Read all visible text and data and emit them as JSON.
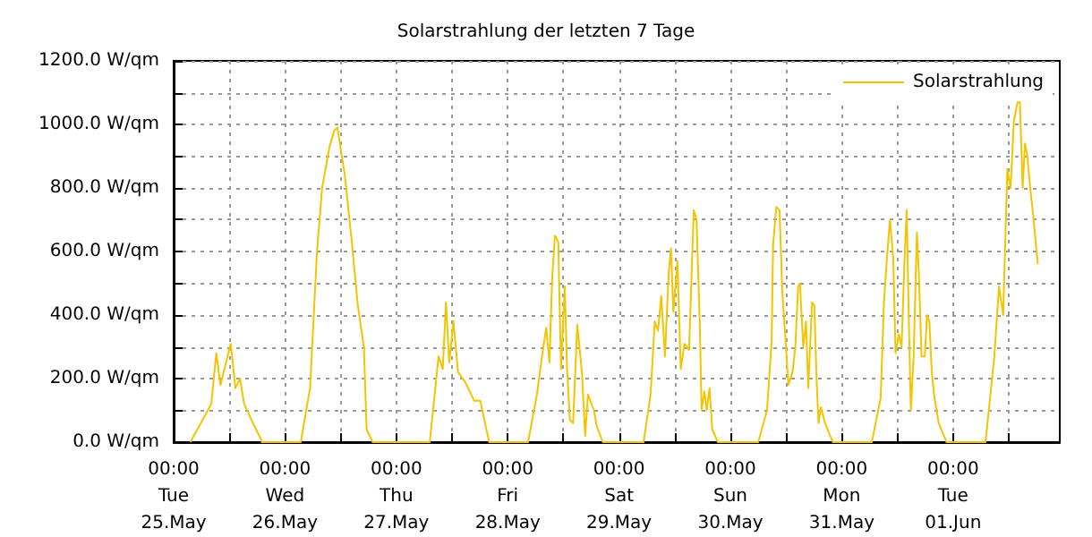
{
  "chart_data": {
    "type": "line",
    "title": "Solarstrahlung der letzten 7 Tage",
    "series": [
      {
        "name": "Solarstrahlung",
        "color": "#f5c400",
        "x": [
          "--05-25T03:36",
          "--05-25T08:06",
          "--05-25T09:12",
          "--05-25T10:06",
          "--05-25T12:18",
          "--05-25T12:36",
          "--05-25T13:18",
          "--05-25T14:18",
          "--05-25T15:12",
          "--05-25T17:06",
          "--05-25T18:48",
          "--05-25T19:00",
          "--05-26T03:24",
          "--05-26T05:24",
          "--05-26T06:54",
          "--05-26T08:00",
          "--05-26T09:36",
          "--05-26T10:36",
          "--05-26T11:18",
          "--05-26T12:54",
          "--05-26T14:24",
          "--05-26T15:42",
          "--05-26T17:00",
          "--05-26T17:36",
          "--05-26T18:54",
          "--05-27T07:12",
          "--05-27T08:24",
          "--05-27T09:06",
          "--05-27T10:00",
          "--05-27T10:42",
          "--05-27T11:24",
          "--05-27T12:18",
          "--05-27T13:18",
          "--05-27T14:48",
          "--05-27T16:48",
          "--05-27T18:06",
          "--05-27T20:00",
          "--05-28T04:24",
          "--05-28T06:18",
          "--05-28T07:24",
          "--05-28T08:18",
          "--05-28T09:00",
          "--05-28T09:36",
          "--05-28T10:12",
          "--05-28T10:54",
          "--05-28T11:30",
          "--05-28T12:18",
          "--05-28T12:48",
          "--05-28T13:24",
          "--05-28T14:06",
          "--05-28T15:00",
          "--05-28T16:00",
          "--05-28T16:42",
          "--05-28T17:18",
          "--05-28T18:36",
          "--05-28T19:12",
          "--05-28T20:30",
          "--05-29T05:18",
          "--05-29T06:48",
          "--05-29T07:42",
          "--05-29T08:24",
          "--05-29T09:06",
          "--05-29T09:54",
          "--05-29T10:42",
          "--05-29T11:12",
          "--05-29T11:42",
          "--05-29T12:36",
          "--05-29T13:18",
          "--05-29T14:06",
          "--05-29T15:06",
          "--05-29T16:06",
          "--05-29T16:42",
          "--05-29T17:24",
          "--05-29T17:48",
          "--05-29T18:24",
          "--05-29T18:54",
          "--05-29T19:30",
          "--05-29T20:06",
          "--05-29T21:18",
          "--05-30T06:00",
          "--05-30T07:54",
          "--05-30T08:54",
          "--05-30T09:12",
          "--05-30T09:54",
          "--05-30T10:36",
          "--05-30T11:12",
          "--05-30T11:54",
          "--05-30T12:30",
          "--05-30T13:24",
          "--05-30T14:00",
          "--05-30T14:36",
          "--05-30T15:00",
          "--05-30T15:42",
          "--05-30T16:18",
          "--05-30T16:48",
          "--05-30T17:36",
          "--05-30T18:06",
          "--05-30T18:36",
          "--05-30T19:00",
          "--05-30T19:30",
          "--05-30T20:24",
          "--05-30T21:30",
          "--05-30T22:06",
          "--05-31T06:30",
          "--05-31T08:24",
          "--05-31T09:06",
          "--05-31T09:42",
          "--05-31T10:24",
          "--05-31T11:06",
          "--05-31T11:36",
          "--05-31T12:18",
          "--05-31T12:54",
          "--05-31T13:30",
          "--05-31T14:00",
          "--05-31T14:30",
          "--05-31T14:54",
          "--05-31T15:30",
          "--05-31T16:12",
          "--05-31T16:36",
          "--05-31T17:12",
          "--05-31T17:54",
          "--05-31T18:24",
          "--05-31T18:54",
          "--05-31T19:24",
          "--05-31T20:00",
          "--05-31T20:54",
          "--05-31T22:36",
          "--06-01T07:00",
          "--06-01T08:54",
          "--06-01T09:54",
          "--06-01T10:48",
          "--06-01T11:42",
          "--06-01T12:24",
          "--06-01T13:06",
          "--06-01T13:54",
          "--06-01T14:24",
          "--06-01T15:00",
          "--06-01T15:30",
          "--06-01T16:00",
          "--06-01T16:42",
          "--06-01T17:18",
          "--06-01T18:00",
          "--06-01T18:18"
        ],
        "values": [
          0,
          120,
          280,
          180,
          310,
          270,
          170,
          200,
          120,
          60,
          10,
          0,
          0,
          170,
          600,
          800,
          930,
          980,
          990,
          840,
          630,
          430,
          300,
          40,
          0,
          0,
          170,
          270,
          230,
          440,
          250,
          380,
          220,
          190,
          130,
          130,
          0,
          0,
          150,
          270,
          360,
          250,
          520,
          650,
          630,
          230,
          490,
          230,
          70,
          60,
          370,
          220,
          20,
          150,
          100,
          50,
          0,
          0,
          150,
          380,
          350,
          460,
          270,
          530,
          610,
          410,
          570,
          230,
          310,
          290,
          730,
          700,
          380,
          100,
          160,
          100,
          170,
          40,
          0,
          0,
          100,
          320,
          620,
          740,
          730,
          470,
          320,
          180,
          220,
          300,
          490,
          500,
          300,
          380,
          170,
          440,
          430,
          190,
          60,
          110,
          60,
          20,
          0,
          0,
          140,
          440,
          570,
          700,
          580,
          280,
          340,
          300,
          560,
          730,
          360,
          100,
          270,
          660,
          540,
          270,
          270,
          400,
          380,
          220,
          140,
          60,
          0,
          0,
          270,
          490,
          400,
          860,
          800,
          1010,
          1070,
          1070,
          800,
          940,
          900,
          790,
          710,
          600,
          560
        ]
      }
    ],
    "xlim": [
      "--05-25T00:00",
      "--06-01T23:00"
    ],
    "xticks": [
      {
        "value": "--05-25T00:00",
        "label": "00:00\nTue\n25.May"
      },
      {
        "value": "--05-25T12:00",
        "label": null
      },
      {
        "value": "--05-26T00:00",
        "label": "00:00\nWed\n26.May"
      },
      {
        "value": "--05-26T12:00",
        "label": null
      },
      {
        "value": "--05-27T00:00",
        "label": "00:00\nThu\n27.May"
      },
      {
        "value": "--05-27T12:00",
        "label": null
      },
      {
        "value": "--05-28T00:00",
        "label": "00:00\nFri\n28.May"
      },
      {
        "value": "--05-28T12:00",
        "label": null
      },
      {
        "value": "--05-29T00:00",
        "label": "00:00\nSat\n29.May"
      },
      {
        "value": "--05-29T12:00",
        "label": null
      },
      {
        "value": "--05-30T00:00",
        "label": "00:00\nSun\n30.May"
      },
      {
        "value": "--05-30T12:00",
        "label": null
      },
      {
        "value": "--05-31T00:00",
        "label": "00:00\nMon\n31.May"
      },
      {
        "value": "--05-31T12:00",
        "label": null
      },
      {
        "value": "--06-01T00:00",
        "label": "00:00\nTue\n01.Jun"
      },
      {
        "value": "--06-01T12:00",
        "label": null
      }
    ],
    "ylim": [
      0,
      1200
    ],
    "yticks": [
      {
        "value": 0,
        "label": "0.0 W/qm"
      },
      {
        "value": 100,
        "label": null
      },
      {
        "value": 200,
        "label": "200.0 W/qm"
      },
      {
        "value": 300,
        "label": null
      },
      {
        "value": 400,
        "label": "400.0 W/qm"
      },
      {
        "value": 500,
        "label": null
      },
      {
        "value": 600,
        "label": "600.0 W/qm"
      },
      {
        "value": 700,
        "label": null
      },
      {
        "value": 800,
        "label": "800.0 W/qm"
      },
      {
        "value": 900,
        "label": null
      },
      {
        "value": 1000,
        "label": "1000.0 W/qm"
      },
      {
        "value": 1100,
        "label": null
      },
      {
        "value": 1200,
        "label": "1200.0 W/qm"
      }
    ],
    "grid": true,
    "legend": "top right",
    "marker": "none",
    "line_style": "solid"
  }
}
